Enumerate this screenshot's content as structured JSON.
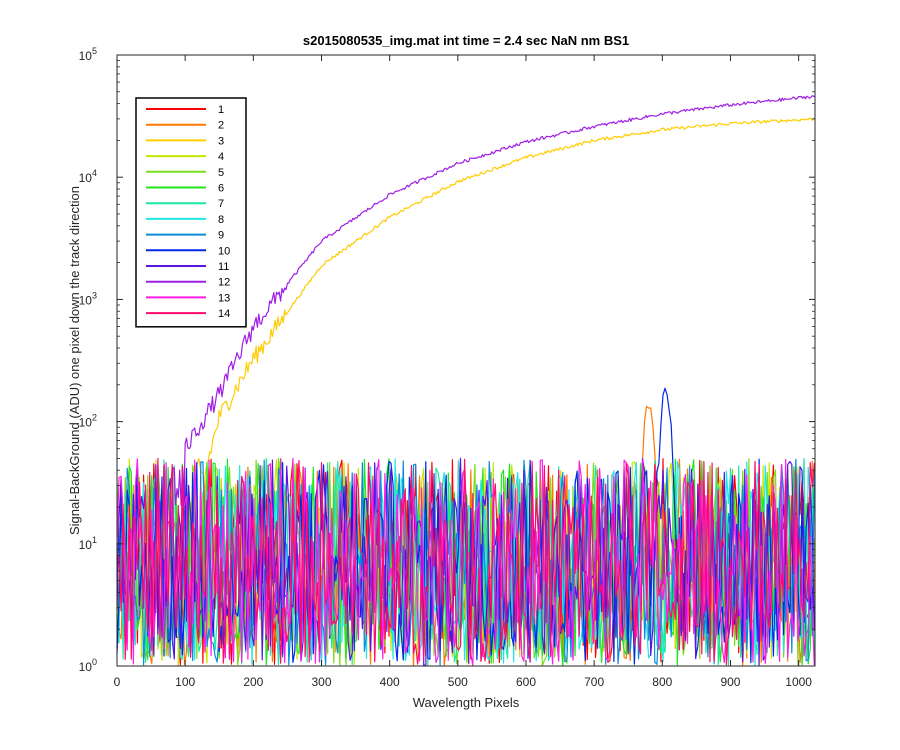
{
  "chart_data": {
    "type": "line",
    "title": "s2015080535_img.mat int time = 2.4 sec  NaN nm BS1",
    "xlabel": "Wavelength Pixels",
    "ylabel": "Signal-BackGround (ADU) one pixel down the track direction",
    "xlim": [
      0,
      1024
    ],
    "ylim": [
      1,
      100000
    ],
    "yscale": "log",
    "grid": false,
    "legend_position": "top-left",
    "x_ticks": [
      "0",
      "100",
      "200",
      "300",
      "400",
      "500",
      "600",
      "700",
      "800",
      "900",
      "1000"
    ],
    "y_ticks": [
      {
        "base": "10",
        "exp": "0"
      },
      {
        "base": "10",
        "exp": "1"
      },
      {
        "base": "10",
        "exp": "2"
      },
      {
        "base": "10",
        "exp": "3"
      },
      {
        "base": "10",
        "exp": "4"
      },
      {
        "base": "10",
        "exp": "5"
      }
    ],
    "series": [
      {
        "name": "1",
        "color": "#ff0000",
        "kind": "noise"
      },
      {
        "name": "2",
        "color": "#ff7700",
        "kind": "noise",
        "peak": {
          "x": 780,
          "y": 160
        }
      },
      {
        "name": "3",
        "color": "#ffcc00",
        "kind": "rising",
        "x": [
          130,
          150,
          200,
          300,
          400,
          500,
          600,
          700,
          800,
          900,
          1024
        ],
        "y": [
          40,
          110,
          330,
          1900,
          4700,
          9200,
          14500,
          20000,
          24500,
          27500,
          30000
        ]
      },
      {
        "name": "4",
        "color": "#c8e600",
        "kind": "noise"
      },
      {
        "name": "5",
        "color": "#7ddc1f",
        "kind": "noise"
      },
      {
        "name": "6",
        "color": "#1fe61f",
        "kind": "noise"
      },
      {
        "name": "7",
        "color": "#1fe6a5",
        "kind": "noise"
      },
      {
        "name": "8",
        "color": "#1fe6e6",
        "kind": "noise"
      },
      {
        "name": "9",
        "color": "#0a8cdc",
        "kind": "noise"
      },
      {
        "name": "10",
        "color": "#0028e6",
        "kind": "noise",
        "peak": {
          "x": 805,
          "y": 200
        }
      },
      {
        "name": "11",
        "color": "#5a14e6",
        "kind": "noise"
      },
      {
        "name": "12",
        "color": "#a01ee6",
        "kind": "rising",
        "x": [
          100,
          150,
          200,
          300,
          400,
          500,
          600,
          700,
          800,
          900,
          1024
        ],
        "y": [
          60,
          170,
          600,
          3000,
          7200,
          13000,
          19500,
          26000,
          33000,
          39000,
          46000
        ]
      },
      {
        "name": "13",
        "color": "#ff1ee6",
        "kind": "noise"
      },
      {
        "name": "14",
        "color": "#ff0a6e",
        "kind": "noise"
      }
    ]
  }
}
